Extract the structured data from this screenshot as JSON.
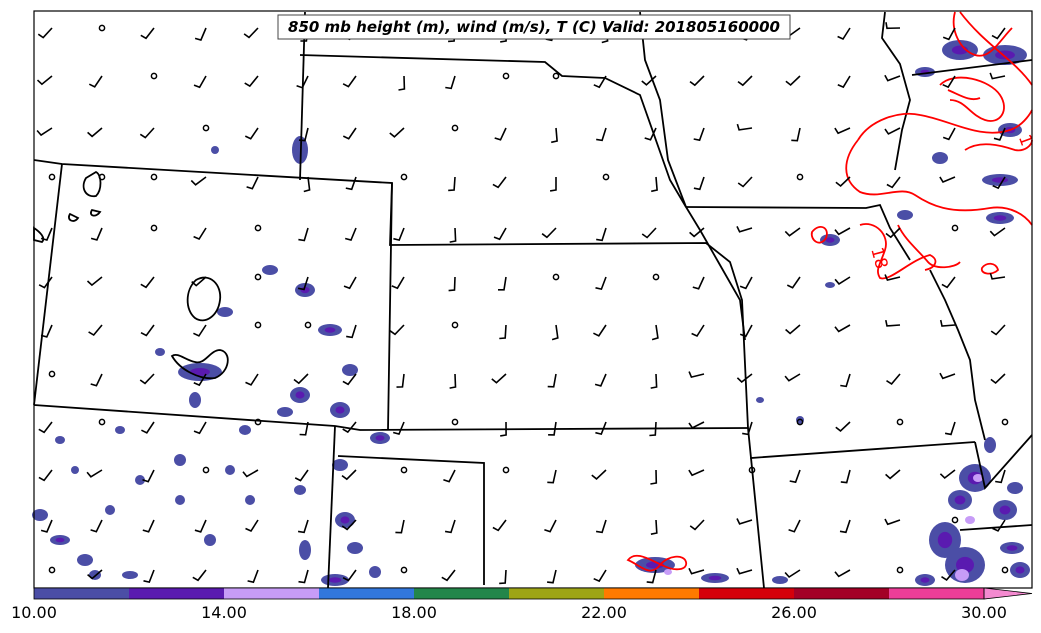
{
  "title": "850 mb height (m), wind (m/s), T (C) Valid: 201805160000",
  "contour_labels": [
    "18",
    "1"
  ],
  "colorbar": {
    "ticks": [
      "10.00",
      "14.00",
      "18.00",
      "22.00",
      "26.00",
      "30.00"
    ],
    "tick_values": [
      10,
      14,
      18,
      22,
      26,
      30
    ],
    "range": [
      10,
      30
    ],
    "colors": [
      "#4b4ea6",
      "#5a1ab0",
      "#c79cf7",
      "#3277dc",
      "#23864a",
      "#9ea516",
      "#ff7a00",
      "#d5000a",
      "#a30026",
      "#ed3d98",
      "#f48ad0"
    ]
  },
  "colors": {
    "state_lines": "#000000",
    "temperature_contours": "#ff0000",
    "height_contours": "#000000",
    "wind_barbs": "#000000"
  }
}
